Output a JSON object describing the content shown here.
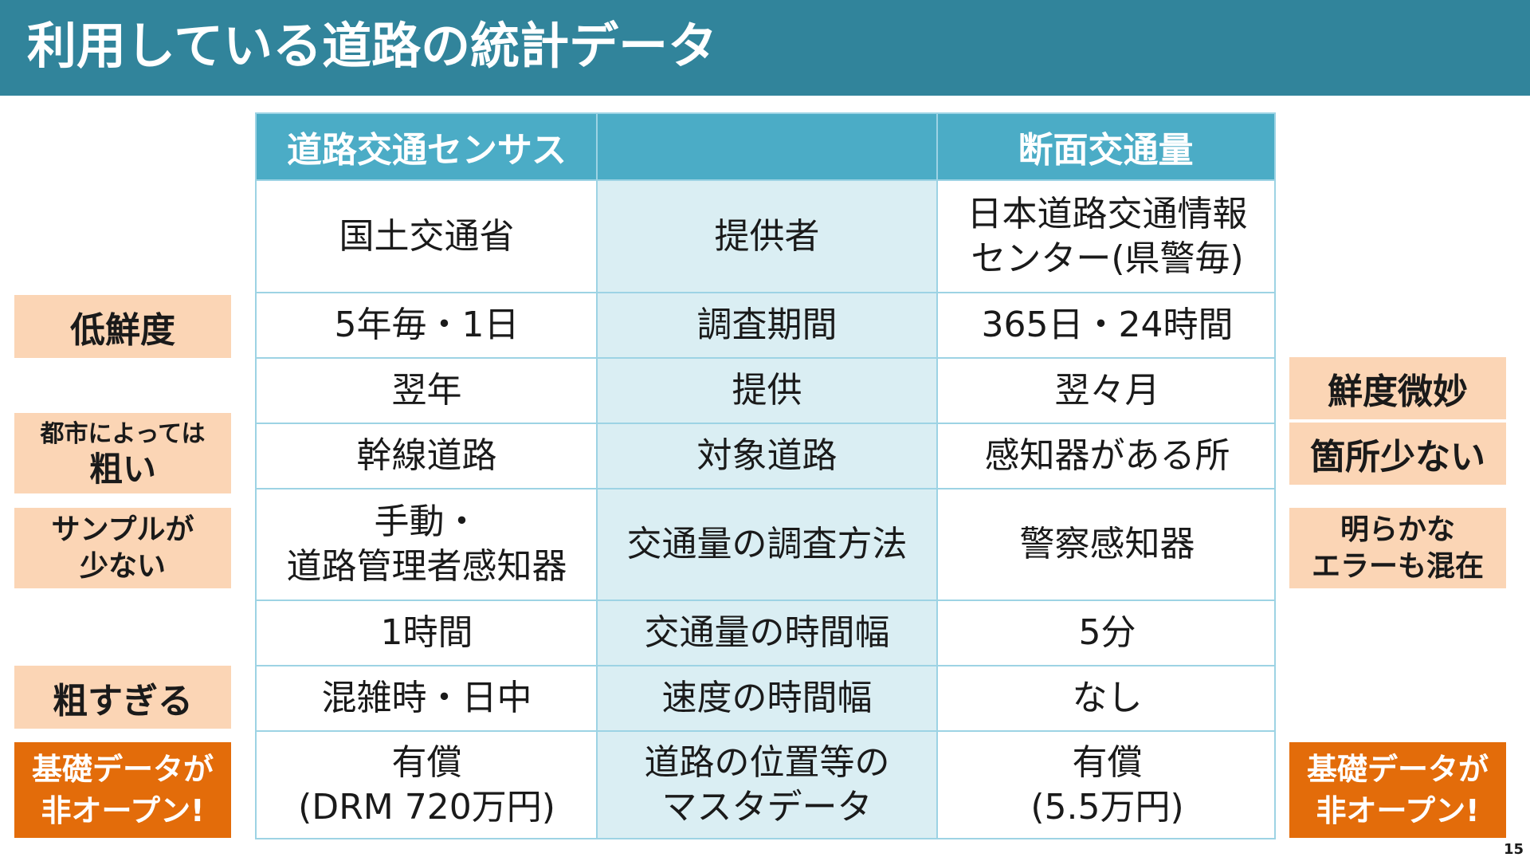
{
  "header": {
    "title": "利用している道路の統計データ"
  },
  "table": {
    "headers": [
      "道路交通センサス",
      "",
      "断面交通量"
    ],
    "rows": [
      [
        "国土交通省",
        "提供者",
        "日本道路交通情報\nセンター(県警毎)"
      ],
      [
        "5年毎・1日",
        "調査期間",
        "365日・24時間"
      ],
      [
        "翌年",
        "提供",
        "翌々月"
      ],
      [
        "幹線道路",
        "対象道路",
        "感知器がある所"
      ],
      [
        "手動・\n道路管理者感知器",
        "交通量の調査方法",
        "警察感知器"
      ],
      [
        "1時間",
        "交通量の時間幅",
        "5分"
      ],
      [
        "混雑時・日中",
        "速度の時間幅",
        "なし"
      ],
      [
        "有償\n(DRM 720万円)",
        "道路の位置等の\nマスタデータ",
        "有償\n(5.5万円)"
      ]
    ]
  },
  "left_labels": {
    "freshness": "低鮮度",
    "coarse_small": "都市によっては",
    "coarse_big": "粗い",
    "few_samples": "サンプルが\n少ない",
    "too_coarse": "粗すぎる",
    "closed": "基礎データが\n非オープン!"
  },
  "right_labels": {
    "freshness": "鮮度微妙",
    "few_places": "箇所少ない",
    "errors": "明らかな\nエラーも混在",
    "closed": "基礎データが\n非オープン!"
  },
  "colors": {
    "header_bg": "#31849b",
    "table_header": "#4bacc6",
    "mid_column": "#daeef3",
    "grid": "#9dd3e4",
    "peach": "#fbd5b5",
    "orange": "#e36c0a"
  },
  "page_number": "15"
}
